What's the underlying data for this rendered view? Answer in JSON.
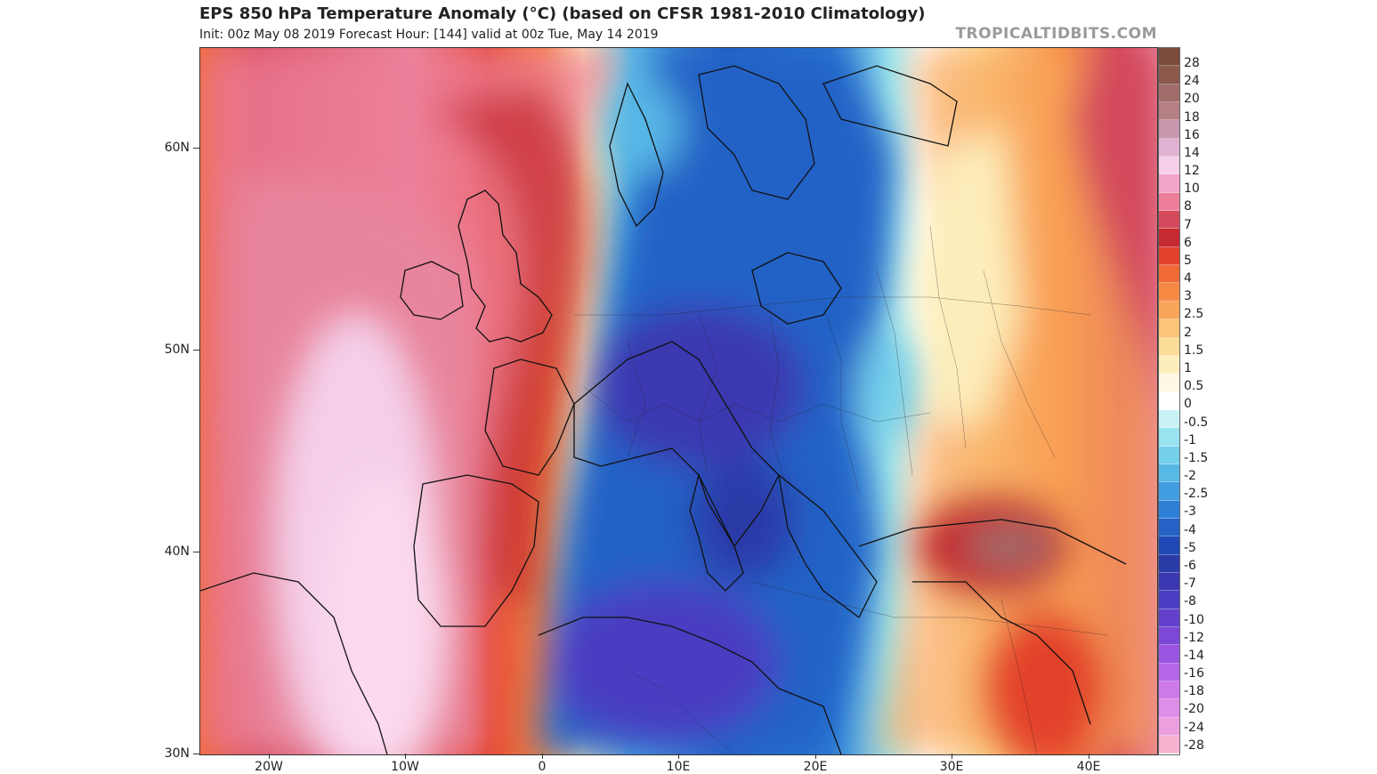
{
  "header": {
    "title": "EPS 850 hPa Temperature Anomaly (°C) (based on CFSR 1981-2010 Climatology)",
    "subtitle": "Init: 00z May 08 2019   Forecast Hour: [144]   valid at 00z Tue, May 14 2019",
    "brand": "TROPICALTIDBITS.COM"
  },
  "map": {
    "lat_ticks": [
      "60N",
      "50N",
      "40N",
      "30N"
    ],
    "lon_ticks": [
      "20W",
      "10W",
      "0",
      "10E",
      "20E",
      "30E",
      "40E"
    ],
    "extent": {
      "lon_min": -25,
      "lon_max": 45,
      "lat_min": 30,
      "lat_max": 65
    }
  },
  "legend": {
    "labels": [
      "28",
      "24",
      "20",
      "18",
      "16",
      "14",
      "12",
      "10",
      "8",
      "7",
      "6",
      "5",
      "4",
      "3",
      "2.5",
      "2",
      "1.5",
      "1",
      "0.5",
      "0",
      "-0.5",
      "-1",
      "-1.5",
      "-2",
      "-2.5",
      "-3",
      "-4",
      "-5",
      "-6",
      "-7",
      "-8",
      "-10",
      "-12",
      "-14",
      "-16",
      "-18",
      "-20",
      "-24",
      "-28"
    ],
    "colors": [
      "#7a4a3a",
      "#8b5a4c",
      "#a06d6a",
      "#b57f86",
      "#c896ad",
      "#e0b3d5",
      "#f5cfe9",
      "#f3a4c7",
      "#ee7f9a",
      "#d44a5c",
      "#c42a30",
      "#e3432a",
      "#ef6a35",
      "#f68a45",
      "#f9a559",
      "#fbc577",
      "#fcdd98",
      "#fdeebb",
      "#fff8e5",
      "#ffffff",
      "#c9f1f4",
      "#98e3ef",
      "#75d0ec",
      "#58b8e6",
      "#419de0",
      "#2e7fd6",
      "#2462c6",
      "#1f48b4",
      "#2a3ba8",
      "#3a37b0",
      "#4a3ec2",
      "#6240cc",
      "#7c48d8",
      "#9a55e0",
      "#b566e6",
      "#cc7ae8",
      "#dd8fe8",
      "#ec9fdf",
      "#f5b3cf"
    ]
  }
}
